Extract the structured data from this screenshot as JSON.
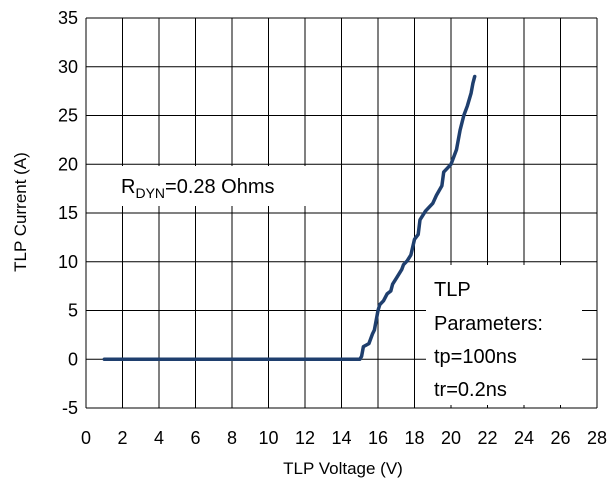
{
  "chart_data": {
    "type": "line",
    "title": "",
    "xlabel": "TLP Voltage (V)",
    "ylabel": "TLP Current (A)",
    "xlim": [
      0,
      28
    ],
    "ylim": [
      -5,
      35
    ],
    "x_ticks": [
      0,
      2,
      4,
      6,
      8,
      10,
      12,
      14,
      16,
      18,
      20,
      22,
      24,
      26,
      28
    ],
    "y_ticks": [
      -5,
      0,
      5,
      10,
      15,
      20,
      25,
      30,
      35
    ],
    "x_tick_labels": [
      "0",
      "2",
      "4",
      "6",
      "8",
      "10",
      "12",
      "14",
      "16",
      "18",
      "20",
      "22",
      "24",
      "26",
      "28"
    ],
    "y_tick_labels": [
      "-5",
      "0",
      "5",
      "10",
      "15",
      "20",
      "25",
      "30",
      "35"
    ],
    "grid": true,
    "legend": false,
    "series_color": "#1f3f6e",
    "series": [
      {
        "x": [
          1.0,
          15.0,
          15.1,
          15.15,
          15.2,
          15.5,
          15.7,
          15.8,
          16.0,
          16.1,
          16.3,
          16.5,
          16.7,
          16.8,
          17.0,
          17.3,
          17.4,
          17.6,
          17.8,
          18.0,
          18.2,
          18.3,
          18.6,
          19.0,
          19.2,
          19.5,
          19.6,
          20.0,
          20.3,
          20.5,
          20.7,
          20.9,
          21.1,
          21.2,
          21.3
        ],
        "y": [
          0.0,
          0.0,
          0.3,
          0.8,
          1.3,
          1.6,
          2.6,
          3.0,
          5.0,
          5.6,
          6.0,
          6.7,
          7.0,
          7.7,
          8.3,
          9.2,
          9.7,
          10.1,
          10.7,
          12.3,
          12.8,
          14.3,
          15.2,
          16.0,
          16.8,
          17.8,
          19.2,
          20.0,
          21.5,
          23.5,
          25.0,
          26.0,
          27.3,
          28.3,
          29.0
        ]
      }
    ],
    "annotations": {
      "rdyn_prefix": "R",
      "rdyn_subscript": "DYN",
      "rdyn_value": "=0.28  Ohms",
      "params_lines": [
        "TLP",
        "Parameters:",
        "tp=100ns",
        "tr=0.2ns"
      ]
    },
    "colors": {
      "grid": "#000000",
      "background": "#ffffff",
      "text": "#000000"
    }
  }
}
